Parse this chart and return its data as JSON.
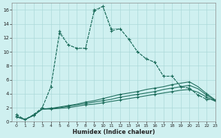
{
  "xlabel": "Humidex (Indice chaleur)",
  "bg_color": "#cff0f0",
  "grid_color": "#aad8d8",
  "line_color": "#1a6b5a",
  "xlim": [
    -0.5,
    23
  ],
  "ylim": [
    0,
    17
  ],
  "xticks": [
    0,
    1,
    2,
    3,
    4,
    5,
    6,
    7,
    8,
    9,
    10,
    11,
    12,
    13,
    14,
    15,
    16,
    17,
    18,
    19,
    20,
    21,
    22,
    23
  ],
  "yticks": [
    0,
    2,
    4,
    6,
    8,
    10,
    12,
    14,
    16
  ],
  "line1_x": [
    0,
    1,
    2,
    3,
    4,
    5,
    6,
    7,
    8,
    9,
    10,
    11,
    12,
    13,
    14,
    15,
    16,
    17,
    18,
    19,
    20,
    21,
    22,
    23
  ],
  "line1_y": [
    1.0,
    0.3,
    1.0,
    2.0,
    5.0,
    12.7,
    11.0,
    10.5,
    10.5,
    15.8,
    16.5,
    13.0,
    13.3,
    11.8,
    10.0,
    9.0,
    8.5,
    6.5,
    6.5,
    5.0,
    4.8,
    3.8,
    3.2,
    3.1
  ],
  "line2_x": [
    0,
    1,
    2,
    3,
    4,
    5,
    6,
    7,
    8,
    9,
    10,
    11,
    12,
    13,
    14,
    15,
    16,
    17,
    18,
    19,
    20,
    21,
    22,
    23
  ],
  "line2_y": [
    1.0,
    0.3,
    1.0,
    2.0,
    5.0,
    13.0,
    11.0,
    10.5,
    10.5,
    16.0,
    16.5,
    13.3,
    13.3,
    11.8,
    10.0,
    9.0,
    8.5,
    6.5,
    6.5,
    5.0,
    4.8,
    3.8,
    3.2,
    3.1
  ],
  "line3_x": [
    0,
    1,
    2,
    3,
    4,
    5,
    6,
    7,
    8,
    9,
    10,
    11,
    12,
    13,
    14,
    15,
    16,
    17,
    18,
    19,
    20,
    21,
    22,
    23
  ],
  "line3_y": [
    0.7,
    0.3,
    0.9,
    1.8,
    1.9,
    2.1,
    2.3,
    2.5,
    2.8,
    3.0,
    3.3,
    3.6,
    3.9,
    4.1,
    4.3,
    4.6,
    4.8,
    5.0,
    5.3,
    5.5,
    5.7,
    5.0,
    4.0,
    3.1
  ],
  "line4_x": [
    0,
    1,
    2,
    3,
    4,
    5,
    6,
    7,
    8,
    9,
    10,
    11,
    12,
    13,
    14,
    15,
    16,
    17,
    18,
    19,
    20,
    21,
    22,
    23
  ],
  "line4_y": [
    0.7,
    0.3,
    0.9,
    1.8,
    1.9,
    2.0,
    2.2,
    2.4,
    2.6,
    2.8,
    3.0,
    3.2,
    3.5,
    3.7,
    3.9,
    4.1,
    4.3,
    4.6,
    4.8,
    5.0,
    5.2,
    4.7,
    3.8,
    3.0
  ],
  "line5_x": [
    0,
    1,
    2,
    3,
    4,
    5,
    6,
    7,
    8,
    9,
    10,
    11,
    12,
    13,
    14,
    15,
    16,
    17,
    18,
    19,
    20,
    21,
    22,
    23
  ],
  "line5_y": [
    0.7,
    0.3,
    0.9,
    1.8,
    1.8,
    1.9,
    2.0,
    2.2,
    2.4,
    2.5,
    2.7,
    2.9,
    3.1,
    3.3,
    3.5,
    3.7,
    3.9,
    4.1,
    4.3,
    4.5,
    4.6,
    4.2,
    3.5,
    2.9
  ]
}
